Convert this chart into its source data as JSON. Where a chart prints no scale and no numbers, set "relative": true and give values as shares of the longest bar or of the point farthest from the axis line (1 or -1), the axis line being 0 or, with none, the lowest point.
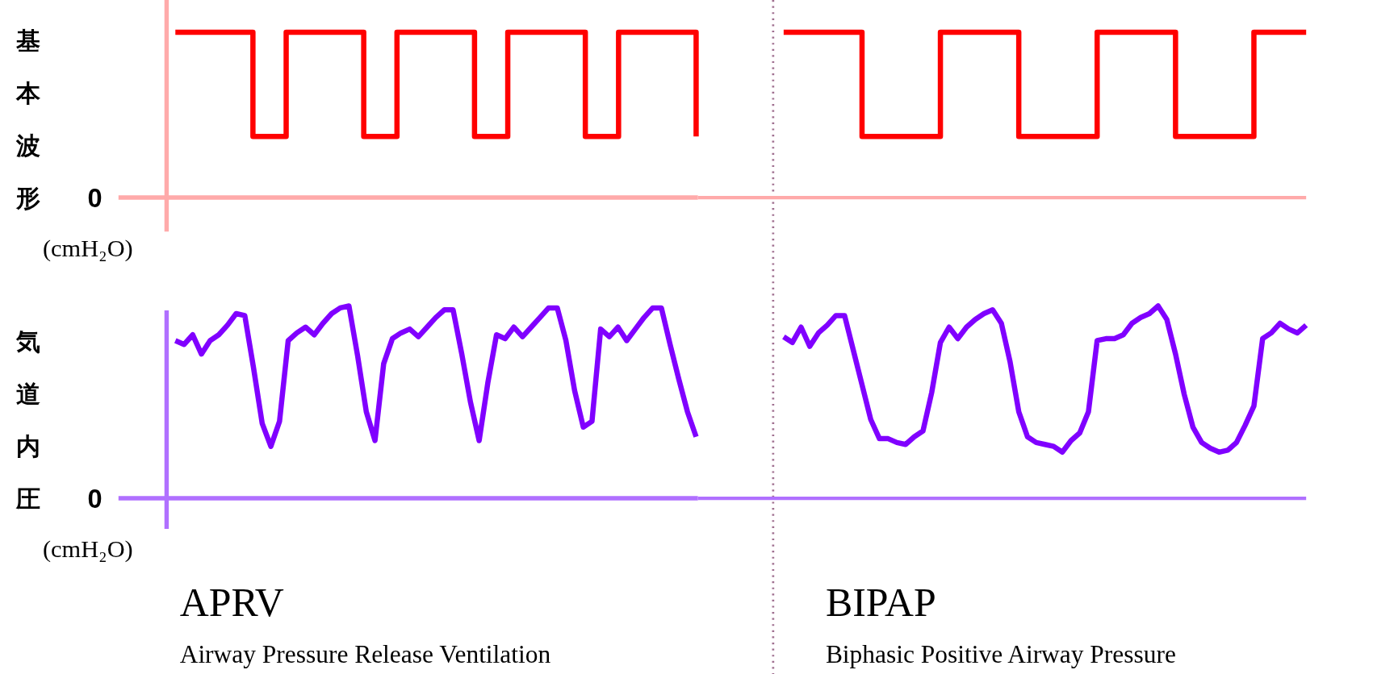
{
  "chart_data": [
    {
      "type": "step",
      "relative": true,
      "ylabel": "基本波形",
      "annotations": [
        "0",
        "(cmH₂O)"
      ],
      "line_style": "solid",
      "categories": [
        null,
        null,
        null,
        null,
        null,
        null,
        null,
        null,
        null,
        null,
        null,
        null,
        null,
        null,
        null,
        null,
        null,
        null,
        null,
        null,
        null,
        null,
        null,
        null,
        null,
        null,
        null,
        null,
        null,
        null,
        null,
        null,
        null,
        null,
        null,
        null,
        null,
        null,
        null,
        null,
        null,
        null,
        null,
        null,
        null,
        null,
        null,
        null
      ],
      "series": [
        {
          "color": "#ff0000",
          "values": [
            1,
            1,
            1,
            1,
            1,
            1,
            1,
            0.37,
            0.37,
            0.37,
            1,
            1,
            1,
            1,
            1,
            1,
            1,
            0.37,
            0.37,
            0.37,
            1,
            1,
            1,
            1,
            1,
            1,
            1,
            0.37,
            0.37,
            0.37,
            1,
            1,
            1,
            1,
            1,
            1,
            1,
            0.37,
            0.37,
            0.37,
            1,
            1,
            1,
            1,
            1,
            1,
            1,
            0.37
          ]
        }
      ]
    },
    {
      "type": "step",
      "relative": true,
      "line_style": "solid",
      "categories": [
        null,
        null,
        null,
        null,
        null,
        null,
        null,
        null,
        null,
        null,
        null,
        null,
        null,
        null,
        null,
        null,
        null,
        null,
        null,
        null,
        null
      ],
      "series": [
        {
          "color": "#ff0000",
          "values": [
            1,
            1,
            1,
            0.37,
            0.37,
            0.37,
            1,
            1,
            1,
            0.37,
            0.37,
            0.37,
            1,
            1,
            1,
            0.37,
            0.37,
            0.37,
            1,
            1,
            1
          ]
        }
      ]
    },
    {
      "type": "line",
      "relative": true,
      "ylabel": "気道内圧",
      "annotations": [
        "0",
        "(cmH₂O)",
        "APRV",
        "Airway Pressure Release Ventilation"
      ],
      "line_style": "solid",
      "categories": [
        null,
        null,
        null,
        null,
        null,
        null,
        null,
        null,
        null,
        null,
        null,
        null,
        null,
        null,
        null,
        null,
        null,
        null,
        null,
        null,
        null,
        null,
        null,
        null,
        null,
        null,
        null,
        null,
        null,
        null,
        null,
        null,
        null,
        null,
        null,
        null,
        null,
        null,
        null,
        null,
        null,
        null,
        null,
        null,
        null,
        null,
        null,
        null,
        null,
        null,
        null,
        null,
        null,
        null,
        null,
        null,
        null,
        null,
        null,
        null,
        null
      ],
      "series": [
        {
          "color": "#8000ff",
          "values": [
            0.82,
            0.8,
            0.85,
            0.75,
            0.82,
            0.85,
            0.9,
            0.96,
            0.95,
            0.68,
            0.39,
            0.27,
            0.4,
            0.82,
            0.86,
            0.89,
            0.85,
            0.91,
            0.96,
            0.99,
            1,
            0.74,
            0.45,
            0.3,
            0.7,
            0.83,
            0.86,
            0.88,
            0.84,
            0.89,
            0.94,
            0.98,
            0.98,
            0.75,
            0.5,
            0.3,
            0.6,
            0.85,
            0.83,
            0.89,
            0.84,
            0.89,
            0.94,
            0.99,
            0.99,
            0.82,
            0.56,
            0.37,
            0.4,
            0.88,
            0.84,
            0.89,
            0.82,
            0.88,
            0.94,
            0.99,
            0.99,
            0.8,
            0.62,
            0.45,
            0.32
          ]
        }
      ]
    },
    {
      "type": "line",
      "relative": true,
      "annotations": [
        "BIPAP",
        "Biphasic Positive Airway Pressure"
      ],
      "line_style": "solid",
      "categories": [
        null,
        null,
        null,
        null,
        null,
        null,
        null,
        null,
        null,
        null,
        null,
        null,
        null,
        null,
        null,
        null,
        null,
        null,
        null,
        null,
        null,
        null,
        null,
        null,
        null,
        null,
        null,
        null,
        null,
        null,
        null,
        null,
        null,
        null,
        null,
        null,
        null,
        null,
        null,
        null,
        null,
        null,
        null,
        null,
        null,
        null,
        null,
        null,
        null,
        null,
        null,
        null,
        null,
        null,
        null,
        null,
        null,
        null,
        null,
        null,
        null
      ],
      "series": [
        {
          "color": "#8000ff",
          "values": [
            0.84,
            0.81,
            0.89,
            0.79,
            0.86,
            0.9,
            0.95,
            0.95,
            0.77,
            0.59,
            0.41,
            0.31,
            0.31,
            0.29,
            0.28,
            0.32,
            0.35,
            0.55,
            0.81,
            0.89,
            0.83,
            0.89,
            0.93,
            0.96,
            0.98,
            0.91,
            0.71,
            0.45,
            0.32,
            0.29,
            0.28,
            0.27,
            0.24,
            0.3,
            0.34,
            0.45,
            0.82,
            0.83,
            0.83,
            0.85,
            0.91,
            0.94,
            0.96,
            1,
            0.93,
            0.75,
            0.54,
            0.37,
            0.29,
            0.26,
            0.24,
            0.25,
            0.29,
            0.38,
            0.48,
            0.83,
            0.86,
            0.91,
            0.88,
            0.86,
            0.9
          ]
        }
      ]
    }
  ]
}
